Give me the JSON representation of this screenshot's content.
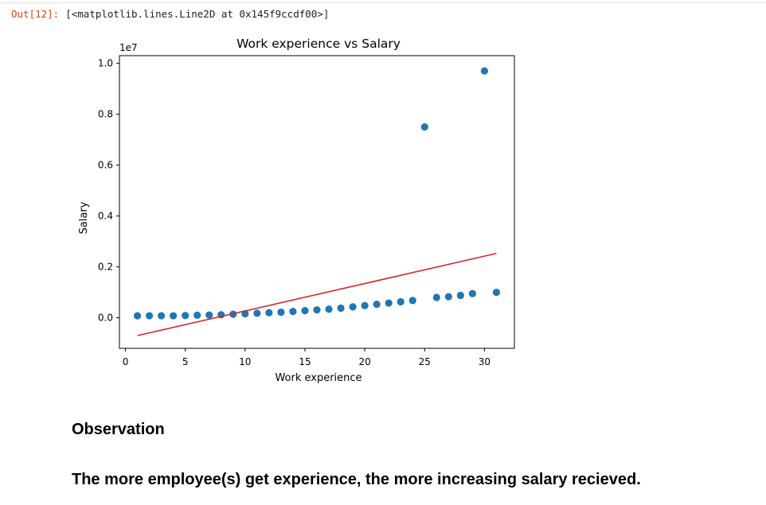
{
  "output": {
    "prompt": "Out[12]:",
    "text": "[<matplotlib.lines.Line2D at 0x145f9ccdf00>]"
  },
  "chart_data": {
    "type": "scatter",
    "title": "Work experience vs Salary",
    "xlabel": "Work experience",
    "ylabel": "Salary",
    "y_offset_text": "1e7",
    "xlim": [
      -0.5,
      32.5
    ],
    "ylim": [
      -0.12,
      1.03
    ],
    "xticks": [
      0,
      5,
      10,
      15,
      20,
      25,
      30
    ],
    "xtick_labels": [
      "0",
      "5",
      "10",
      "15",
      "20",
      "25",
      "30"
    ],
    "yticks": [
      0.0,
      0.2,
      0.4,
      0.6,
      0.8,
      1.0
    ],
    "ytick_labels": [
      "0.0",
      "0.2",
      "0.4",
      "0.6",
      "0.8",
      "1.0"
    ],
    "series": [
      {
        "kind": "scatter",
        "color": "#1f77b4",
        "x": [
          1,
          2,
          3,
          4,
          5,
          6,
          7,
          8,
          9,
          10,
          11,
          12,
          13,
          14,
          15,
          16,
          17,
          18,
          19,
          20,
          21,
          22,
          23,
          24,
          25,
          26,
          27,
          28,
          29,
          30,
          31
        ],
        "y": [
          0.008,
          0.008,
          0.008,
          0.008,
          0.009,
          0.01,
          0.011,
          0.012,
          0.014,
          0.016,
          0.018,
          0.02,
          0.022,
          0.025,
          0.028,
          0.031,
          0.034,
          0.038,
          0.043,
          0.048,
          0.053,
          0.058,
          0.063,
          0.068,
          0.75,
          0.08,
          0.083,
          0.088,
          0.095,
          0.97,
          0.1
        ]
      },
      {
        "kind": "line",
        "color": "#d62728",
        "x": [
          1,
          31
        ],
        "y": [
          -0.07,
          0.253
        ]
      }
    ],
    "grid": false
  },
  "markdown": {
    "heading": "Observation",
    "paragraph": "The more employee(s) get experience, the more increasing salary recieved."
  }
}
